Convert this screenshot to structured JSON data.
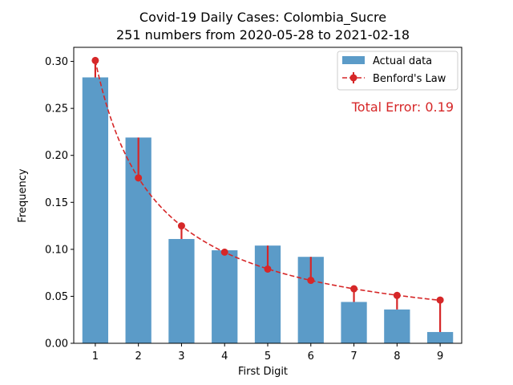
{
  "chart_data": {
    "type": "bar",
    "title": "Covid-19 Daily Cases: Colombia_Sucre",
    "subtitle": "251 numbers from 2020-05-28 to 2021-02-18",
    "xlabel": "First Digit",
    "ylabel": "Frequency",
    "categories": [
      "1",
      "2",
      "3",
      "4",
      "5",
      "6",
      "7",
      "8",
      "9"
    ],
    "x": [
      1,
      2,
      3,
      4,
      5,
      6,
      7,
      8,
      9
    ],
    "ylim": [
      0,
      0.315
    ],
    "yticks": [
      0.0,
      0.05,
      0.1,
      0.15,
      0.2,
      0.25,
      0.3
    ],
    "ytick_labels": [
      "0.00",
      "0.05",
      "0.10",
      "0.15",
      "0.20",
      "0.25",
      "0.30"
    ],
    "grid": false,
    "legend_position": "top-right",
    "series": [
      {
        "name": "Actual data",
        "type": "bar",
        "color": "#5b9bc8",
        "values": [
          0.283,
          0.219,
          0.111,
          0.099,
          0.104,
          0.092,
          0.044,
          0.036,
          0.012
        ]
      },
      {
        "name": "Benford's Law",
        "type": "line",
        "style": "dashed",
        "marker": "circle",
        "color": "#d62728",
        "values": [
          0.301,
          0.176,
          0.125,
          0.097,
          0.079,
          0.067,
          0.058,
          0.051,
          0.046
        ]
      }
    ],
    "annotation": {
      "text": "Total Error: 0.19",
      "color": "#d62728",
      "position": "top-right"
    }
  }
}
